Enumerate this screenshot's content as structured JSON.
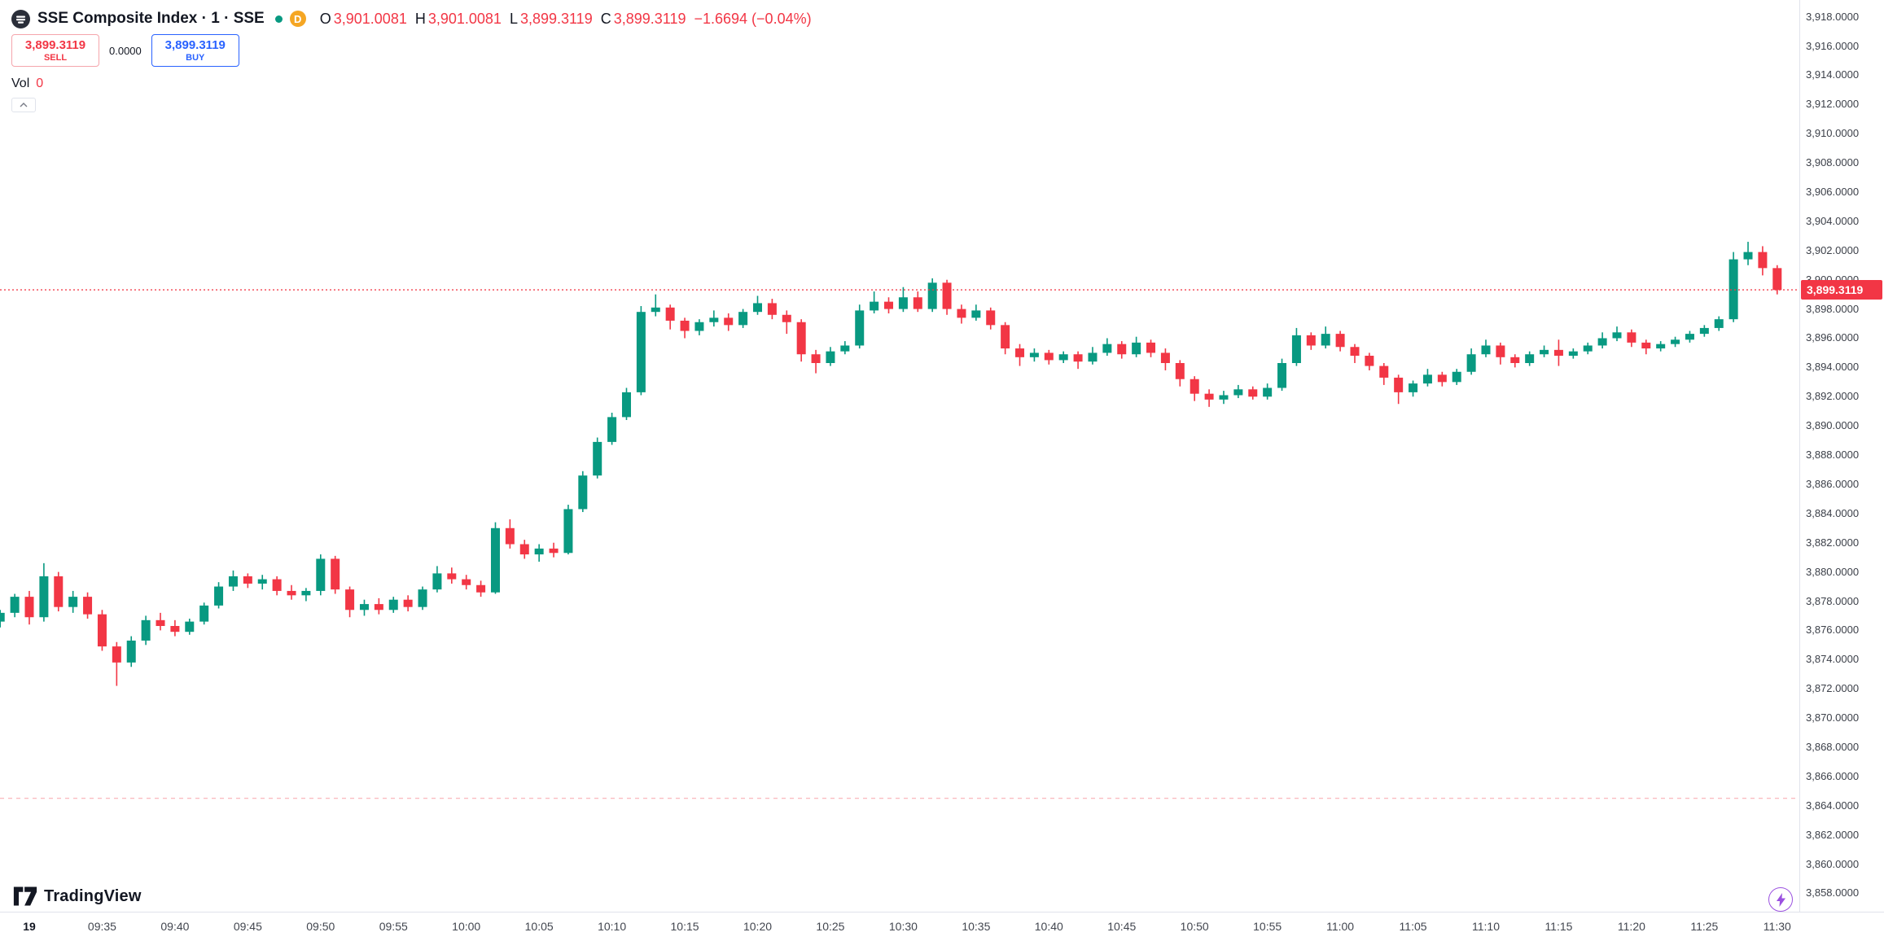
{
  "header": {
    "symbol_title": "SSE Composite Index · 1 · SSE",
    "resolution_badge": "D",
    "ohlc": {
      "o_label": "O",
      "o": "3,901.0081",
      "h_label": "H",
      "h": "3,901.0081",
      "l_label": "L",
      "l": "3,899.3119",
      "c_label": "C",
      "c": "3,899.3119",
      "change": "−1.6694 (−0.04%)"
    },
    "trade_panel": {
      "sell_price": "3,899.3119",
      "sell_label": "SELL",
      "spread": "0.0000",
      "buy_price": "3,899.3119",
      "buy_label": "BUY"
    },
    "volume": {
      "label": "Vol",
      "value": "0"
    }
  },
  "footer": {
    "logo_text": "TradingView"
  },
  "last_price_badge": "3,899.3119",
  "colors": {
    "up": "#089981",
    "down": "#F23645",
    "buy": "#2962FF",
    "sell": "#F23645",
    "delayed_badge": "#F5A623",
    "axis_line": "#E0E3EB",
    "axis_text": "#3C4049",
    "lightning": "#9B51E0"
  },
  "price_axis_labels": [
    "3,918.0000",
    "3,916.0000",
    "3,914.0000",
    "3,912.0000",
    "3,910.0000",
    "3,908.0000",
    "3,906.0000",
    "3,904.0000",
    "3,902.0000",
    "3,900.0000",
    "3,898.0000",
    "3,896.0000",
    "3,894.0000",
    "3,892.0000",
    "3,890.0000",
    "3,888.0000",
    "3,886.0000",
    "3,884.0000",
    "3,882.0000",
    "3,880.0000",
    "3,878.0000",
    "3,876.0000",
    "3,874.0000",
    "3,872.0000",
    "3,870.0000",
    "3,868.0000",
    "3,866.0000",
    "3,864.0000",
    "3,862.0000",
    "3,860.0000",
    "3,858.0000"
  ],
  "time_axis_labels": [
    {
      "label": "19",
      "minute": 0,
      "bold": true
    },
    {
      "label": "09:35",
      "minute": 5
    },
    {
      "label": "09:40",
      "minute": 10
    },
    {
      "label": "09:45",
      "minute": 15
    },
    {
      "label": "09:50",
      "minute": 20
    },
    {
      "label": "09:55",
      "minute": 25
    },
    {
      "label": "10:00",
      "minute": 30
    },
    {
      "label": "10:05",
      "minute": 35
    },
    {
      "label": "10:10",
      "minute": 40
    },
    {
      "label": "10:15",
      "minute": 45
    },
    {
      "label": "10:20",
      "minute": 50
    },
    {
      "label": "10:25",
      "minute": 55
    },
    {
      "label": "10:30",
      "minute": 60
    },
    {
      "label": "10:35",
      "minute": 65
    },
    {
      "label": "10:40",
      "minute": 70
    },
    {
      "label": "10:45",
      "minute": 75
    },
    {
      "label": "10:50",
      "minute": 80
    },
    {
      "label": "10:55",
      "minute": 85
    },
    {
      "label": "11:00",
      "minute": 90
    },
    {
      "label": "11:05",
      "minute": 95
    },
    {
      "label": "11:10",
      "minute": 100
    },
    {
      "label": "11:15",
      "minute": 105
    },
    {
      "label": "11:20",
      "minute": 110
    },
    {
      "label": "11:25",
      "minute": 115
    },
    {
      "label": "11:30",
      "minute": 120
    }
  ],
  "chart_data": {
    "type": "candlestick",
    "title": "SSE Composite Index, 1 minute, SSE",
    "interval_minutes": 1,
    "session": "09:30 - 11:30",
    "bars_start_minute": -2,
    "last_price": 3899.3119,
    "prev_close_line": 3864.5,
    "y_axis": {
      "min": 3858,
      "max": 3918,
      "tick_step": 2,
      "grid": false
    },
    "legend_position": "top-left",
    "candles": [
      [
        3876.6,
        3877.4,
        3876.2,
        3877.2
      ],
      [
        3877.2,
        3878.5,
        3876.9,
        3878.3
      ],
      [
        3878.3,
        3878.7,
        3876.4,
        3876.9
      ],
      [
        3876.9,
        3880.6,
        3876.6,
        3879.7
      ],
      [
        3879.7,
        3880.0,
        3877.3,
        3877.6
      ],
      [
        3877.6,
        3878.7,
        3877.2,
        3878.3
      ],
      [
        3878.3,
        3878.6,
        3876.8,
        3877.1
      ],
      [
        3877.1,
        3877.4,
        3874.6,
        3874.9
      ],
      [
        3874.9,
        3875.2,
        3872.2,
        3873.8
      ],
      [
        3873.8,
        3875.6,
        3873.5,
        3875.3
      ],
      [
        3875.3,
        3877.0,
        3875.0,
        3876.7
      ],
      [
        3876.7,
        3877.2,
        3876.0,
        3876.3
      ],
      [
        3876.3,
        3876.7,
        3875.6,
        3875.9
      ],
      [
        3875.9,
        3876.8,
        3875.7,
        3876.6
      ],
      [
        3876.6,
        3877.9,
        3876.4,
        3877.7
      ],
      [
        3877.7,
        3879.3,
        3877.5,
        3879.0
      ],
      [
        3879.0,
        3880.1,
        3878.7,
        3879.7
      ],
      [
        3879.7,
        3879.9,
        3878.9,
        3879.2
      ],
      [
        3879.2,
        3879.8,
        3878.8,
        3879.5
      ],
      [
        3879.5,
        3879.7,
        3878.4,
        3878.7
      ],
      [
        3878.7,
        3879.1,
        3878.1,
        3878.4
      ],
      [
        3878.4,
        3878.9,
        3878.0,
        3878.7
      ],
      [
        3878.7,
        3881.2,
        3878.4,
        3880.9
      ],
      [
        3880.9,
        3881.1,
        3878.5,
        3878.8
      ],
      [
        3878.8,
        3879.0,
        3876.9,
        3877.4
      ],
      [
        3877.4,
        3878.1,
        3877.0,
        3877.8
      ],
      [
        3877.8,
        3878.2,
        3877.1,
        3877.4
      ],
      [
        3877.4,
        3878.3,
        3877.2,
        3878.1
      ],
      [
        3878.1,
        3878.4,
        3877.3,
        3877.6
      ],
      [
        3877.6,
        3879.0,
        3877.4,
        3878.8
      ],
      [
        3878.8,
        3880.4,
        3878.6,
        3879.9
      ],
      [
        3879.9,
        3880.3,
        3879.2,
        3879.5
      ],
      [
        3879.5,
        3879.8,
        3878.8,
        3879.1
      ],
      [
        3879.1,
        3879.4,
        3878.3,
        3878.6
      ],
      [
        3878.6,
        3883.4,
        3878.5,
        3883.0
      ],
      [
        3883.0,
        3883.6,
        3881.6,
        3881.9
      ],
      [
        3881.9,
        3882.2,
        3880.9,
        3881.2
      ],
      [
        3881.2,
        3881.9,
        3880.7,
        3881.6
      ],
      [
        3881.6,
        3882.0,
        3881.0,
        3881.3
      ],
      [
        3881.3,
        3884.6,
        3881.2,
        3884.3
      ],
      [
        3884.3,
        3886.9,
        3884.1,
        3886.6
      ],
      [
        3886.6,
        3889.2,
        3886.4,
        3888.9
      ],
      [
        3888.9,
        3890.9,
        3888.7,
        3890.6
      ],
      [
        3890.6,
        3892.6,
        3890.4,
        3892.3
      ],
      [
        3892.3,
        3898.2,
        3892.1,
        3897.8
      ],
      [
        3897.8,
        3899.0,
        3897.5,
        3898.1
      ],
      [
        3898.1,
        3898.3,
        3896.6,
        3897.2
      ],
      [
        3897.2,
        3897.4,
        3896.0,
        3896.5
      ],
      [
        3896.5,
        3897.3,
        3896.2,
        3897.1
      ],
      [
        3897.1,
        3897.9,
        3896.8,
        3897.4
      ],
      [
        3897.4,
        3897.7,
        3896.5,
        3896.9
      ],
      [
        3896.9,
        3898.0,
        3896.7,
        3897.8
      ],
      [
        3897.8,
        3898.9,
        3897.6,
        3898.4
      ],
      [
        3898.4,
        3898.7,
        3897.3,
        3897.6
      ],
      [
        3897.6,
        3897.9,
        3896.3,
        3897.1
      ],
      [
        3897.1,
        3897.3,
        3894.4,
        3894.9
      ],
      [
        3894.9,
        3895.2,
        3893.6,
        3894.3
      ],
      [
        3894.3,
        3895.4,
        3894.1,
        3895.1
      ],
      [
        3895.1,
        3895.8,
        3894.9,
        3895.5
      ],
      [
        3895.5,
        3898.3,
        3895.3,
        3897.9
      ],
      [
        3897.9,
        3899.2,
        3897.7,
        3898.5
      ],
      [
        3898.5,
        3898.8,
        3897.7,
        3898.0
      ],
      [
        3898.0,
        3899.5,
        3897.8,
        3898.8
      ],
      [
        3898.8,
        3899.2,
        3897.8,
        3898.0
      ],
      [
        3898.0,
        3900.1,
        3897.8,
        3899.8
      ],
      [
        3899.8,
        3900.0,
        3897.6,
        3898.0
      ],
      [
        3898.0,
        3898.3,
        3897.0,
        3897.4
      ],
      [
        3897.4,
        3898.3,
        3897.2,
        3897.9
      ],
      [
        3897.9,
        3898.1,
        3896.6,
        3896.9
      ],
      [
        3896.9,
        3897.1,
        3894.9,
        3895.3
      ],
      [
        3895.3,
        3895.6,
        3894.1,
        3894.7
      ],
      [
        3894.7,
        3895.3,
        3894.4,
        3895.0
      ],
      [
        3895.0,
        3895.2,
        3894.2,
        3894.5
      ],
      [
        3894.5,
        3895.1,
        3894.3,
        3894.9
      ],
      [
        3894.9,
        3895.1,
        3893.9,
        3894.4
      ],
      [
        3894.4,
        3895.4,
        3894.2,
        3895.0
      ],
      [
        3895.0,
        3896.0,
        3894.8,
        3895.6
      ],
      [
        3895.6,
        3895.8,
        3894.6,
        3894.9
      ],
      [
        3894.9,
        3896.1,
        3894.7,
        3895.7
      ],
      [
        3895.7,
        3895.9,
        3894.7,
        3895.0
      ],
      [
        3895.0,
        3895.3,
        3893.8,
        3894.3
      ],
      [
        3894.3,
        3894.5,
        3892.7,
        3893.2
      ],
      [
        3893.2,
        3893.4,
        3891.7,
        3892.2
      ],
      [
        3892.2,
        3892.5,
        3891.3,
        3891.8
      ],
      [
        3891.8,
        3892.4,
        3891.5,
        3892.1
      ],
      [
        3892.1,
        3892.8,
        3891.9,
        3892.5
      ],
      [
        3892.5,
        3892.7,
        3891.8,
        3892.0
      ],
      [
        3892.0,
        3892.9,
        3891.8,
        3892.6
      ],
      [
        3892.6,
        3894.6,
        3892.4,
        3894.3
      ],
      [
        3894.3,
        3896.7,
        3894.1,
        3896.2
      ],
      [
        3896.2,
        3896.4,
        3895.2,
        3895.5
      ],
      [
        3895.5,
        3896.8,
        3895.3,
        3896.3
      ],
      [
        3896.3,
        3896.5,
        3895.1,
        3895.4
      ],
      [
        3895.4,
        3895.6,
        3894.3,
        3894.8
      ],
      [
        3894.8,
        3895.0,
        3893.8,
        3894.1
      ],
      [
        3894.1,
        3894.3,
        3892.8,
        3893.3
      ],
      [
        3893.3,
        3893.5,
        3891.5,
        3892.3
      ],
      [
        3892.3,
        3893.1,
        3892.0,
        3892.9
      ],
      [
        3892.9,
        3893.9,
        3892.7,
        3893.5
      ],
      [
        3893.5,
        3893.7,
        3892.7,
        3893.0
      ],
      [
        3893.0,
        3893.9,
        3892.8,
        3893.7
      ],
      [
        3893.7,
        3895.3,
        3893.5,
        3894.9
      ],
      [
        3894.9,
        3895.9,
        3894.7,
        3895.5
      ],
      [
        3895.5,
        3895.7,
        3894.2,
        3894.7
      ],
      [
        3894.7,
        3894.9,
        3894.0,
        3894.3
      ],
      [
        3894.3,
        3895.1,
        3894.1,
        3894.9
      ],
      [
        3894.9,
        3895.5,
        3894.7,
        3895.2
      ],
      [
        3895.2,
        3895.9,
        3894.1,
        3894.8
      ],
      [
        3894.8,
        3895.3,
        3894.6,
        3895.1
      ],
      [
        3895.1,
        3895.7,
        3894.9,
        3895.5
      ],
      [
        3895.5,
        3896.4,
        3895.3,
        3896.0
      ],
      [
        3896.0,
        3896.8,
        3895.8,
        3896.4
      ],
      [
        3896.4,
        3896.6,
        3895.4,
        3895.7
      ],
      [
        3895.7,
        3895.9,
        3894.9,
        3895.3
      ],
      [
        3895.3,
        3895.8,
        3895.1,
        3895.6
      ],
      [
        3895.6,
        3896.1,
        3895.4,
        3895.9
      ],
      [
        3895.9,
        3896.5,
        3895.7,
        3896.3
      ],
      [
        3896.3,
        3896.9,
        3896.1,
        3896.7
      ],
      [
        3896.7,
        3897.5,
        3896.5,
        3897.3
      ],
      [
        3897.3,
        3901.9,
        3897.1,
        3901.4
      ],
      [
        3901.4,
        3902.6,
        3901.0,
        3901.9
      ],
      [
        3901.9,
        3902.3,
        3900.3,
        3900.8
      ],
      [
        3900.8,
        3901.0,
        3899.0,
        3899.3
      ]
    ]
  }
}
